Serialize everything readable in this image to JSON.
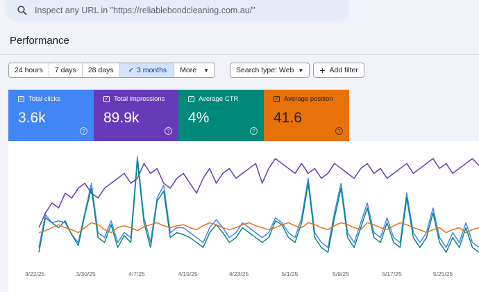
{
  "search": {
    "placeholder": "Inspect any URL in \"https://reliablebondcleaning.com.au/\""
  },
  "page_title": "Performance",
  "date_range": {
    "options": [
      "24 hours",
      "7 days",
      "28 days",
      "3 months"
    ],
    "selected": "3 months",
    "more_label": "More"
  },
  "search_type_label": "Search type: Web",
  "add_filter_label": "Add filter",
  "metrics": [
    {
      "label": "Total clicks",
      "value": "3.6k",
      "color": "#4285f4"
    },
    {
      "label": "Total impressions",
      "value": "89.9k",
      "color": "#673ab7"
    },
    {
      "label": "Average CTR",
      "value": "4%",
      "color": "#00897b"
    },
    {
      "label": "Average position",
      "value": "41.6",
      "color": "#e8710a"
    }
  ],
  "chart_data": {
    "type": "line",
    "x_ticks": [
      "3/22/25",
      "3/30/25",
      "4/7/25",
      "4/15/25",
      "4/23/25",
      "5/1/25",
      "5/9/25",
      "5/17/25",
      "5/25/25"
    ],
    "series": [
      {
        "name": "Total clicks",
        "color": "#4285f4",
        "values": [
          5,
          38,
          30,
          32,
          30,
          18,
          10,
          40,
          70,
          20,
          15,
          32,
          10,
          20,
          15,
          97,
          35,
          10,
          55,
          68,
          20,
          25,
          25,
          20,
          15,
          10,
          25,
          33,
          25,
          15,
          20,
          30,
          25,
          20,
          15,
          20,
          35,
          30,
          20,
          15,
          35,
          75,
          20,
          10,
          5,
          40,
          70,
          20,
          10,
          30,
          50,
          20,
          15,
          35,
          15,
          10,
          60,
          20,
          10,
          20,
          45,
          15,
          5,
          20,
          10,
          30,
          10,
          5
        ]
      },
      {
        "name": "Total impressions",
        "color": "#673ab7",
        "values": [
          25,
          40,
          50,
          45,
          60,
          55,
          65,
          70,
          60,
          55,
          65,
          70,
          75,
          80,
          70,
          75,
          90,
          80,
          85,
          70,
          65,
          75,
          80,
          70,
          60,
          75,
          85,
          70,
          80,
          85,
          75,
          80,
          85,
          90,
          70,
          85,
          95,
          90,
          85,
          80,
          90,
          80,
          85,
          75,
          80,
          90,
          85,
          80,
          75,
          85,
          90,
          80,
          85,
          75,
          80,
          85,
          90,
          80,
          85,
          90,
          95,
          85,
          90,
          80,
          85,
          90,
          95,
          88
        ]
      },
      {
        "name": "Average CTR",
        "color": "#00897b",
        "values": [
          0,
          35,
          30,
          25,
          32,
          18,
          7,
          38,
          65,
          15,
          10,
          28,
          5,
          17,
          10,
          93,
          30,
          5,
          52,
          62,
          15,
          20,
          18,
          15,
          10,
          5,
          20,
          28,
          20,
          10,
          15,
          25,
          20,
          15,
          10,
          15,
          32,
          28,
          15,
          10,
          30,
          70,
          15,
          5,
          0,
          35,
          65,
          15,
          5,
          25,
          45,
          15,
          10,
          30,
          10,
          5,
          55,
          15,
          5,
          15,
          40,
          10,
          0,
          15,
          5,
          25,
          5,
          0
        ]
      },
      {
        "name": "Average position",
        "color": "#e8710a",
        "values": [
          20,
          22,
          25,
          28,
          25,
          23,
          20,
          25,
          30,
          28,
          23,
          20,
          25,
          27,
          25,
          22,
          26,
          28,
          30,
          27,
          25,
          27,
          28,
          25,
          23,
          27,
          30,
          28,
          25,
          23,
          25,
          28,
          30,
          27,
          25,
          23,
          25,
          28,
          30,
          27,
          25,
          30,
          28,
          25,
          23,
          27,
          30,
          28,
          25,
          23,
          30,
          28,
          25,
          23,
          27,
          30,
          28,
          25,
          23,
          20,
          23,
          25,
          20,
          23,
          25,
          20,
          23,
          25
        ]
      }
    ]
  }
}
